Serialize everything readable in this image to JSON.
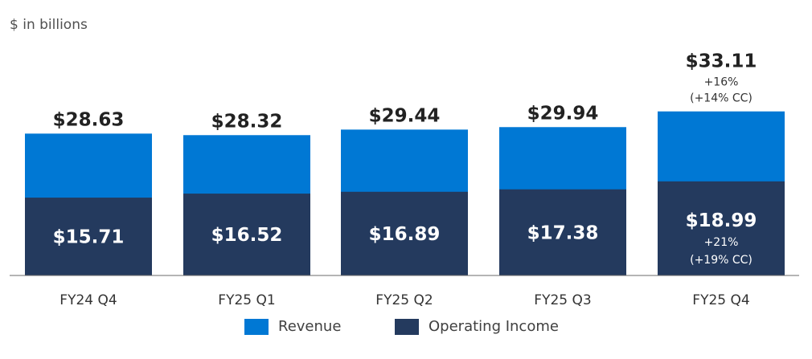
{
  "unit_label": "$ in billions",
  "colors": {
    "revenue": "#0078D4",
    "operating_income": "#243A5E",
    "text_dark": "#222222",
    "axis": "#6b6b6b"
  },
  "chart_data": {
    "type": "bar",
    "stacked": "overlay",
    "categories": [
      "FY24 Q4",
      "FY25 Q1",
      "FY25 Q2",
      "FY25 Q3",
      "FY25 Q4"
    ],
    "series": [
      {
        "name": "Revenue",
        "values": [
          28.63,
          28.32,
          29.44,
          29.94,
          33.11
        ],
        "labels": [
          "$28.63",
          "$28.32",
          "$29.44",
          "$29.94",
          "$33.11"
        ]
      },
      {
        "name": "Operating Income",
        "values": [
          15.71,
          16.52,
          16.89,
          17.38,
          18.99
        ],
        "labels": [
          "$15.71",
          "$16.52",
          "$16.89",
          "$17.38",
          "$18.99"
        ]
      }
    ],
    "annotations": {
      "revenue_last": [
        "+16%",
        "(+14% CC)"
      ],
      "operating_income_last": [
        "+21%",
        "(+19% CC)"
      ]
    },
    "ylim": [
      0,
      35
    ],
    "grid": false,
    "legend_position": "bottom"
  }
}
